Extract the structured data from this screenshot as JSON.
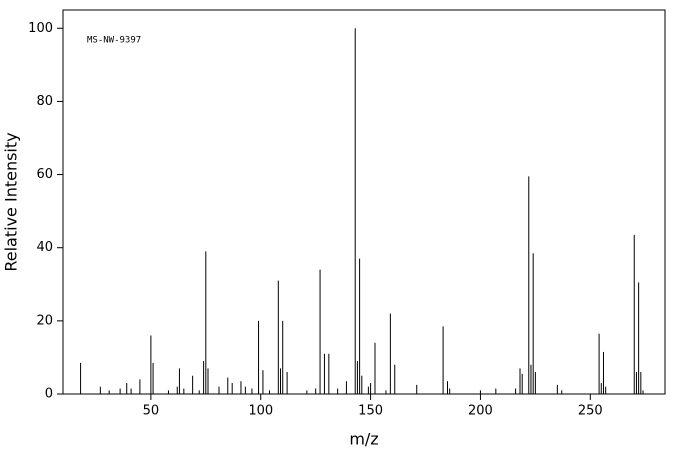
{
  "chart_data": {
    "type": "stick",
    "annotation": "MS-NW-9397",
    "x_label": "m/z",
    "y_label": "Relative Intensity",
    "color": "#000000",
    "xlim": [
      10,
      284
    ],
    "ylim": [
      0,
      105
    ],
    "xticks": [
      50,
      100,
      150,
      200,
      250
    ],
    "yticks": [
      0,
      20,
      40,
      60,
      80,
      100
    ],
    "x": [
      18,
      27,
      31,
      36,
      39,
      41,
      45,
      50,
      51,
      58,
      62,
      63,
      65,
      69,
      72,
      74,
      75,
      76,
      81,
      85,
      87,
      91,
      93,
      96,
      99,
      101,
      104,
      108,
      109,
      110,
      112,
      121,
      125,
      127,
      129,
      131,
      135,
      139,
      143,
      144,
      145,
      146,
      149,
      150,
      152,
      157,
      159,
      161,
      171,
      183,
      185,
      186,
      200,
      207,
      216,
      218,
      219,
      222,
      223,
      224,
      225,
      235,
      237,
      254,
      255,
      256,
      257,
      270,
      271,
      272,
      273,
      274
    ],
    "values": [
      8.5,
      2,
      1,
      1.5,
      3,
      1.5,
      4,
      16,
      8.5,
      1,
      2,
      7,
      1.5,
      5,
      1,
      9,
      39,
      7,
      2,
      4.5,
      3,
      3.5,
      2,
      1.5,
      20,
      6.5,
      1,
      31,
      7,
      20,
      6,
      1,
      1.5,
      34,
      11,
      11,
      1.5,
      3.5,
      100,
      9,
      37,
      5,
      2,
      3,
      14,
      1,
      22,
      8,
      2.5,
      18.5,
      3.5,
      1.5,
      1,
      1.5,
      1.5,
      7,
      5.5,
      59.5,
      8,
      38.5,
      6,
      2.5,
      1,
      16.5,
      3,
      11.5,
      2,
      43.5,
      6,
      30.5,
      6,
      1
    ]
  }
}
